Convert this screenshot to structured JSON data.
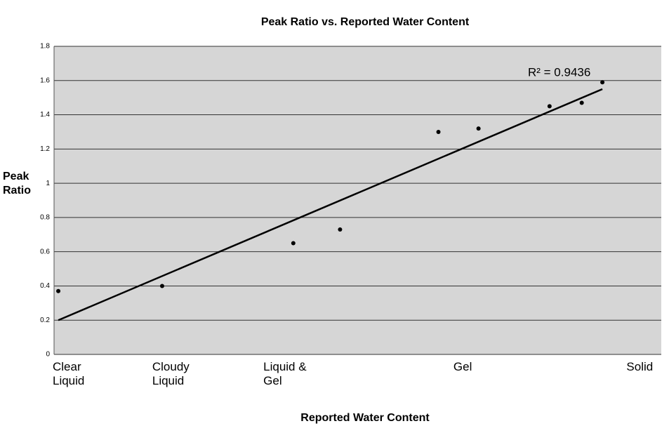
{
  "chart_data": {
    "type": "scatter",
    "title": "Peak Ratio vs. Reported Water Content",
    "x_label": "Reported Water Content",
    "y_label": "Peak Ratio",
    "series": [
      {
        "name": "Peak Ratio",
        "color": "#000000",
        "x": [
          0.07,
          1.78,
          3.94,
          4.71,
          6.33,
          6.99,
          8.16,
          8.69,
          9.03
        ],
        "values": [
          0.37,
          0.4,
          0.65,
          0.73,
          1.3,
          1.32,
          1.45,
          1.47,
          1.59
        ]
      }
    ],
    "trendline": {
      "color": "#000000",
      "x": [
        0.07,
        9.03
      ],
      "values": [
        0.2,
        1.55
      ]
    },
    "annotation": "R² = 0.9436",
    "xlim": [
      0,
      10
    ],
    "xticks": [
      {
        "value": 0,
        "label": "Clear Liquid"
      },
      {
        "value": 1.64,
        "label": "Cloudy Liquid"
      },
      {
        "value": 3.47,
        "label": "Liquid & Gel"
      },
      {
        "value": 6.6,
        "label": "Gel"
      },
      {
        "value": 9.45,
        "label": "Solid"
      }
    ],
    "ylim": [
      0,
      1.8
    ],
    "yticks": [
      0,
      0.2,
      0.4,
      0.6,
      0.8,
      1,
      1.2,
      1.4,
      1.6,
      1.8
    ],
    "grid": true
  }
}
